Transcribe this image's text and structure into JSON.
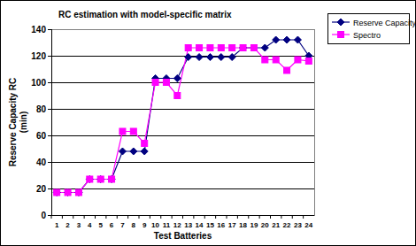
{
  "chart_data": {
    "type": "line",
    "title": "RC estimation with model-specific matrix",
    "x_label": "Test Batteries",
    "y_label": "Reserve Capacity RC (min)",
    "categories": [
      "1",
      "2",
      "3",
      "4",
      "5",
      "6",
      "7",
      "8",
      "9",
      "10",
      "11",
      "12",
      "13",
      "14",
      "15",
      "16",
      "17",
      "18",
      "19",
      "20",
      "21",
      "22",
      "23",
      "24"
    ],
    "series": [
      {
        "name": "Reserve Capacity",
        "color": "#000080",
        "marker": "diamond",
        "values": [
          17,
          17,
          17,
          27,
          27,
          27,
          48,
          48,
          48,
          103,
          103,
          103,
          119,
          119,
          119,
          119,
          119,
          126,
          126,
          126,
          132,
          132,
          132,
          120
        ]
      },
      {
        "name": "Spectro",
        "color": "#ff00ff",
        "marker": "square",
        "values": [
          17,
          17,
          17,
          27,
          27,
          27,
          63,
          63,
          54,
          100,
          100,
          90,
          126,
          126,
          126,
          126,
          126,
          126,
          126,
          117,
          117,
          109,
          117,
          116
        ]
      }
    ],
    "ylim": [
      0,
      140
    ],
    "yticks": [
      0,
      20,
      40,
      60,
      80,
      100,
      120,
      140
    ],
    "grid": true,
    "legend": "right"
  }
}
